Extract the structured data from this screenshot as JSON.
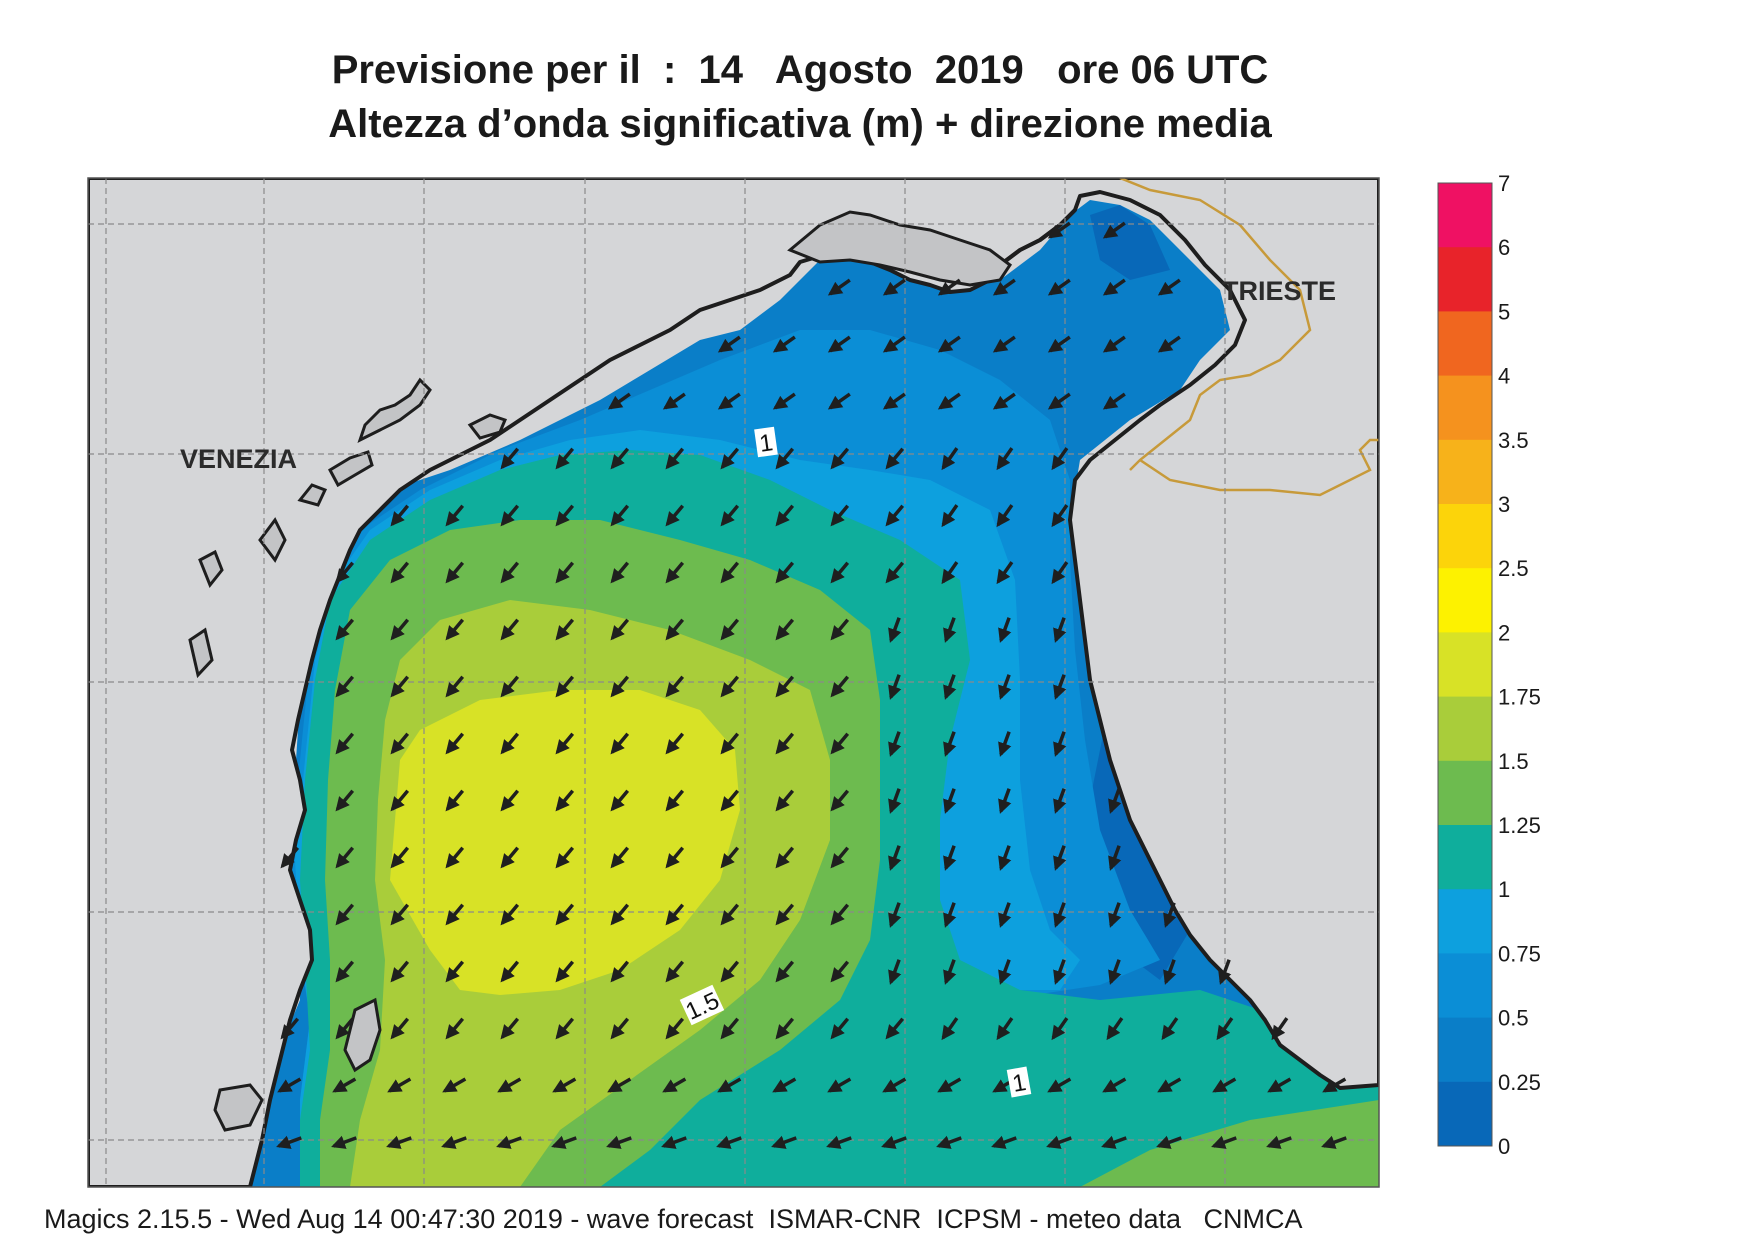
{
  "title": {
    "line1": "Previsione per il  :  14   Agosto  2019   ore 06 UTC",
    "line2": "Altezza d’onda significativa (m) + direzione media"
  },
  "cities": [
    "VENEZIA",
    "TRIESTE"
  ],
  "contour_labels": [
    "1",
    "1.5",
    "1"
  ],
  "colorbar": {
    "labels": [
      "7",
      "6",
      "5",
      "4",
      "3.5",
      "3",
      "2.5",
      "2",
      "1.75",
      "1.5",
      "1.25",
      "1",
      "0.75",
      "0.5",
      "0.25",
      "0"
    ],
    "colors": [
      "#ef1163",
      "#e8232a",
      "#f0661f",
      "#f5921e",
      "#f7b21a",
      "#fcd40a",
      "#fdf200",
      "#d8e226",
      "#a9cd3a",
      "#6dbb4f",
      "#0fae9c",
      "#0da0de",
      "#0b8ed6",
      "#0a7ec8",
      "#0868b8"
    ],
    "colors_note_order": "top-to-bottom"
  },
  "colors": {
    "land": "#d5d6d8",
    "coast": "#1e1e1e",
    "border": "#c79a3a",
    "grid": "#8a8a8a",
    "arrow": "#1f1f1f"
  },
  "footer": "Magics 2.15.5 - Wed Aug 14 00:47:30 2019 - wave forecast  ISMAR-CNR  ICPSM - meteo data   CNMCA"
}
